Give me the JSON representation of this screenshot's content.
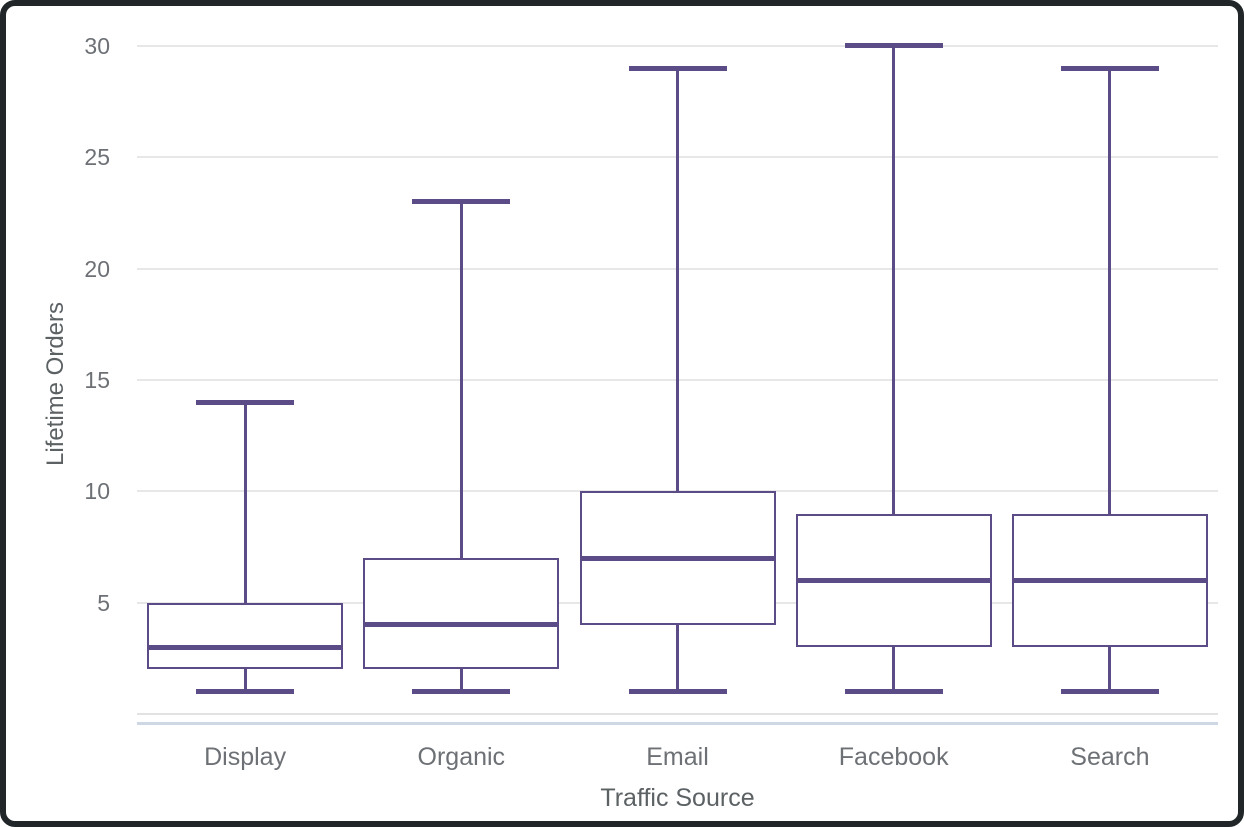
{
  "chart_data": {
    "type": "box",
    "title": "",
    "xlabel": "Traffic Source",
    "ylabel": "Lifetime Orders",
    "categories": [
      "Display",
      "Organic",
      "Email",
      "Facebook",
      "Search"
    ],
    "series": [
      {
        "name": "Display",
        "min": 1,
        "q1": 2,
        "median": 3,
        "q3": 5,
        "max": 14
      },
      {
        "name": "Organic",
        "min": 1,
        "q1": 2,
        "median": 4,
        "q3": 7,
        "max": 23
      },
      {
        "name": "Email",
        "min": 1,
        "q1": 4,
        "median": 7,
        "q3": 10,
        "max": 29
      },
      {
        "name": "Facebook",
        "min": 1,
        "q1": 3,
        "median": 6,
        "q3": 9,
        "max": 30
      },
      {
        "name": "Search",
        "min": 1,
        "q1": 3,
        "median": 6,
        "q3": 9,
        "max": 29
      }
    ],
    "ylim": [
      0,
      30
    ],
    "yticks": [
      5,
      10,
      15,
      20,
      25,
      30
    ],
    "grid": "horizontal",
    "legend": "none"
  },
  "colors": {
    "box_stroke": "#5B4C87",
    "gridline": "#E7E7E7",
    "baseline": "#E2E2E2",
    "axis_line": "#CDD8E4",
    "tick_text": "#6D7175",
    "title_text": "#5C6164",
    "frame": "#212629",
    "background": "#FFFFFF"
  }
}
